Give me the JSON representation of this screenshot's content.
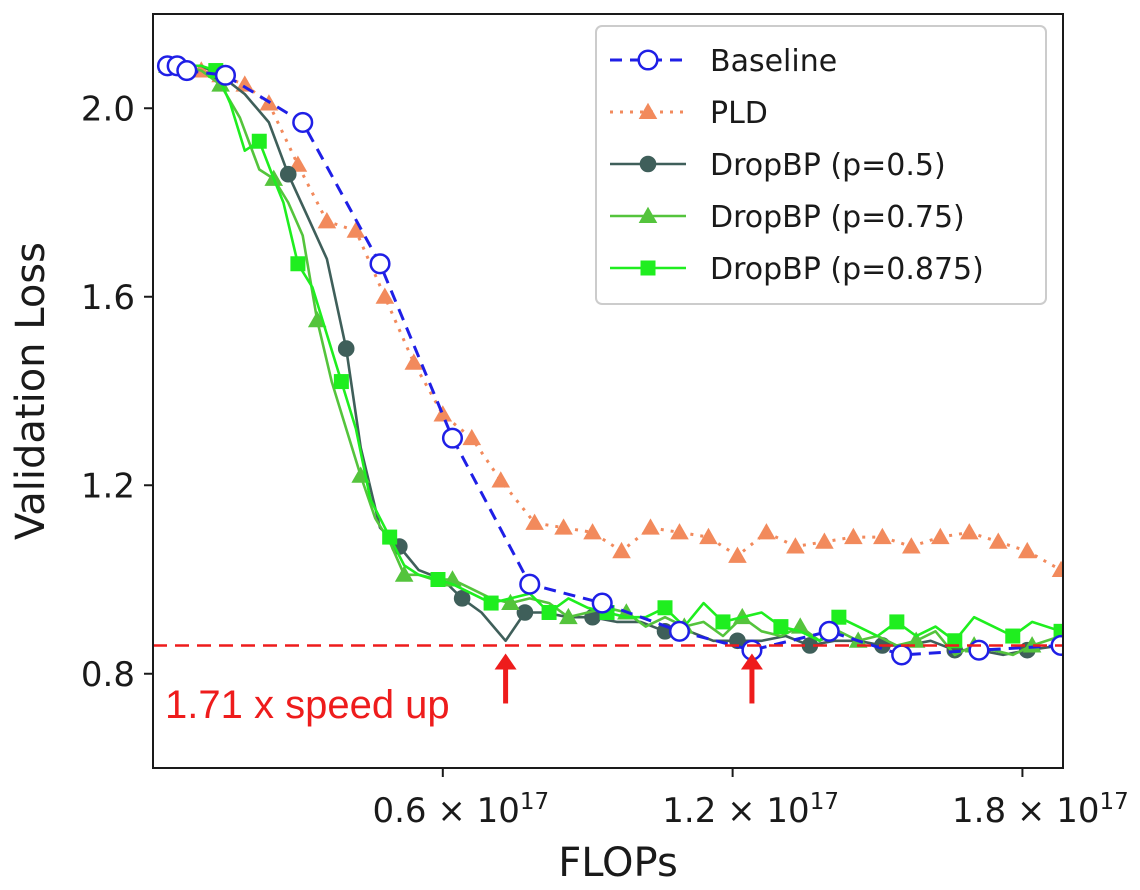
{
  "chart_data": {
    "type": "line",
    "title": "",
    "xlabel": "FLOPs",
    "ylabel": "Validation Loss",
    "xlim": [
      0.0,
      1.884e+17
    ],
    "ylim": [
      0.6,
      2.2
    ],
    "xticks": [
      {
        "value": 6e+16,
        "mantissa": "0.6",
        "exponent": "17"
      },
      {
        "value": 1.2e+17,
        "mantissa": "1.2",
        "exponent": "17"
      },
      {
        "value": 1.8e+17,
        "mantissa": "1.8",
        "exponent": "17"
      }
    ],
    "yticks": [
      {
        "value": 0.8,
        "label": "0.8"
      },
      {
        "value": 1.2,
        "label": "1.2"
      },
      {
        "value": 1.6,
        "label": "1.6"
      },
      {
        "value": 2.0,
        "label": "2.0"
      }
    ],
    "reference_line": {
      "y": 0.86,
      "color": "#ee1c1c",
      "style": "dashed"
    },
    "annotation": {
      "text": "1.71 x speed up",
      "color": "#ee1c1c",
      "arrows_at_x": [
        7.3e+16,
        1.24e+17
      ]
    },
    "legend_position": "upper right",
    "series": [
      {
        "name": "Baseline",
        "color": "#1f1fe6",
        "dash": "12 8",
        "marker": "open-circle",
        "marker_every": 1,
        "x": [
          3000000000000000.0,
          5000000000000000.0,
          7000000000000000.0,
          1.5e+16,
          3.1e+16,
          4.7e+16,
          6.2e+16,
          7.8e+16,
          9.3e+16,
          1.09e+17,
          1.24e+17,
          1.4e+17,
          1.55e+17,
          1.71e+17,
          1.88e+17
        ],
        "y": [
          2.09,
          2.09,
          2.08,
          2.07,
          1.97,
          1.67,
          1.3,
          0.99,
          0.95,
          0.89,
          0.85,
          0.89,
          0.84,
          0.85,
          0.86
        ]
      },
      {
        "name": "PLD",
        "color": "#f28a5c",
        "dash": "3 7",
        "marker": "triangle",
        "marker_every": 1,
        "x": [
          3000000000000000.0,
          6000000000000000.0,
          1e+16,
          1.4e+16,
          1.9e+16,
          2.4e+16,
          3e+16,
          3.6e+16,
          4.2e+16,
          4.8e+16,
          5.4e+16,
          6e+16,
          6.6e+16,
          7.2e+16,
          7.9e+16,
          8.5e+16,
          9.1e+16,
          9.7e+16,
          1.03e+17,
          1.09e+17,
          1.15e+17,
          1.21e+17,
          1.27e+17,
          1.33e+17,
          1.39e+17,
          1.45e+17,
          1.51e+17,
          1.57e+17,
          1.63e+17,
          1.69e+17,
          1.75e+17,
          1.81e+17,
          1.88e+17
        ],
        "y": [
          2.09,
          2.09,
          2.08,
          2.07,
          2.05,
          2.01,
          1.88,
          1.76,
          1.74,
          1.6,
          1.46,
          1.35,
          1.3,
          1.21,
          1.12,
          1.11,
          1.1,
          1.06,
          1.11,
          1.1,
          1.09,
          1.05,
          1.1,
          1.07,
          1.08,
          1.09,
          1.09,
          1.07,
          1.09,
          1.1,
          1.08,
          1.06,
          1.02
        ]
      },
      {
        "name": "DropBP (p=0.5)",
        "color": "#3f5f5a",
        "dash": "",
        "marker": "filled-circle",
        "marker_every": 3,
        "x": [
          3000000000000000.0,
          6000000000000000.0,
          1e+16,
          1.4e+16,
          1.9e+16,
          2.4e+16,
          2.8e+16,
          3.2e+16,
          3.6e+16,
          4e+16,
          4.3e+16,
          4.7e+16,
          5.1e+16,
          5.5e+16,
          6e+16,
          6.4e+16,
          6.8e+16,
          7.3e+16,
          7.7e+16,
          8.1e+16,
          8.6e+16,
          9.1e+16,
          9.6e+16,
          1.01e+17,
          1.06e+17,
          1.11e+17,
          1.16e+17,
          1.21e+17,
          1.26e+17,
          1.31e+17,
          1.36e+17,
          1.41e+17,
          1.46e+17,
          1.51e+17,
          1.56e+17,
          1.61e+17,
          1.66e+17,
          1.71e+17,
          1.76e+17,
          1.81e+17,
          1.88e+17
        ],
        "y": [
          2.09,
          2.09,
          2.09,
          2.07,
          2.03,
          1.97,
          1.86,
          1.77,
          1.68,
          1.49,
          1.28,
          1.11,
          1.07,
          1.02,
          1.0,
          0.96,
          0.93,
          0.87,
          0.93,
          0.93,
          0.92,
          0.92,
          0.91,
          0.91,
          0.89,
          0.89,
          0.87,
          0.87,
          0.87,
          0.88,
          0.86,
          0.87,
          0.87,
          0.86,
          0.86,
          0.87,
          0.85,
          0.85,
          0.84,
          0.85,
          0.86
        ]
      },
      {
        "name": "DropBP (p=0.75)",
        "color": "#54c43c",
        "dash": "",
        "marker": "triangle",
        "marker_every": 3,
        "x": [
          3000000000000000.0,
          6000000000000000.0,
          1e+16,
          1.4e+16,
          1.8e+16,
          2.2e+16,
          2.5e+16,
          2.8e+16,
          3.1e+16,
          3.4e+16,
          3.7e+16,
          4e+16,
          4.3e+16,
          4.6e+16,
          4.9e+16,
          5.2e+16,
          5.5e+16,
          5.8e+16,
          6.2e+16,
          6.6e+16,
          7e+16,
          7.4e+16,
          7.8e+16,
          8.2e+16,
          8.6e+16,
          9e+16,
          9.4e+16,
          9.8e+16,
          1.02e+17,
          1.06e+17,
          1.1e+17,
          1.14e+17,
          1.18e+17,
          1.22e+17,
          1.26e+17,
          1.3e+17,
          1.34e+17,
          1.38e+17,
          1.42e+17,
          1.46e+17,
          1.5e+17,
          1.54e+17,
          1.58e+17,
          1.62e+17,
          1.66e+17,
          1.7e+17,
          1.74e+17,
          1.78e+17,
          1.82e+17,
          1.88e+17
        ],
        "y": [
          2.09,
          2.09,
          2.08,
          2.05,
          1.98,
          1.87,
          1.85,
          1.8,
          1.73,
          1.55,
          1.42,
          1.32,
          1.22,
          1.13,
          1.08,
          1.01,
          1.01,
          1.0,
          1.0,
          0.98,
          0.96,
          0.95,
          0.96,
          0.95,
          0.92,
          0.93,
          0.94,
          0.93,
          0.9,
          0.92,
          0.9,
          0.91,
          0.88,
          0.92,
          0.89,
          0.88,
          0.9,
          0.87,
          0.89,
          0.87,
          0.88,
          0.86,
          0.87,
          0.89,
          0.84,
          0.86,
          0.85,
          0.84,
          0.86,
          0.88
        ]
      },
      {
        "name": "DropBP (p=0.875)",
        "color": "#1fee1f",
        "dash": "",
        "marker": "filled-square",
        "marker_every": 3,
        "x": [
          3000000000000000.0,
          6000000000000000.0,
          1e+16,
          1.3e+16,
          1.6e+16,
          1.9e+16,
          2.2e+16,
          2.5e+16,
          2.7e+16,
          3e+16,
          3.3e+16,
          3.6e+16,
          3.9e+16,
          4.2e+16,
          4.5e+16,
          4.9e+16,
          5.2e+16,
          5.5e+16,
          5.9e+16,
          6.2e+16,
          6.6e+16,
          7e+16,
          7.4e+16,
          7.8e+16,
          8.2e+16,
          8.6e+16,
          9e+16,
          9.4e+16,
          9.8e+16,
          1.02e+17,
          1.06e+17,
          1.1e+17,
          1.14e+17,
          1.18e+17,
          1.22e+17,
          1.26e+17,
          1.3e+17,
          1.34e+17,
          1.38e+17,
          1.42e+17,
          1.46e+17,
          1.5e+17,
          1.54e+17,
          1.58e+17,
          1.62e+17,
          1.66e+17,
          1.7e+17,
          1.74e+17,
          1.78e+17,
          1.82e+17,
          1.88e+17
        ],
        "y": [
          2.09,
          2.09,
          2.09,
          2.08,
          2.01,
          1.91,
          1.93,
          1.85,
          1.8,
          1.67,
          1.62,
          1.52,
          1.42,
          1.32,
          1.17,
          1.09,
          1.03,
          1.01,
          1.0,
          0.99,
          0.97,
          0.95,
          0.96,
          0.97,
          0.93,
          0.96,
          0.94,
          0.93,
          0.92,
          0.92,
          0.94,
          0.9,
          0.95,
          0.91,
          0.92,
          0.93,
          0.9,
          0.89,
          0.87,
          0.92,
          0.9,
          0.88,
          0.91,
          0.88,
          0.9,
          0.87,
          0.92,
          0.9,
          0.88,
          0.91,
          0.89
        ]
      }
    ]
  }
}
